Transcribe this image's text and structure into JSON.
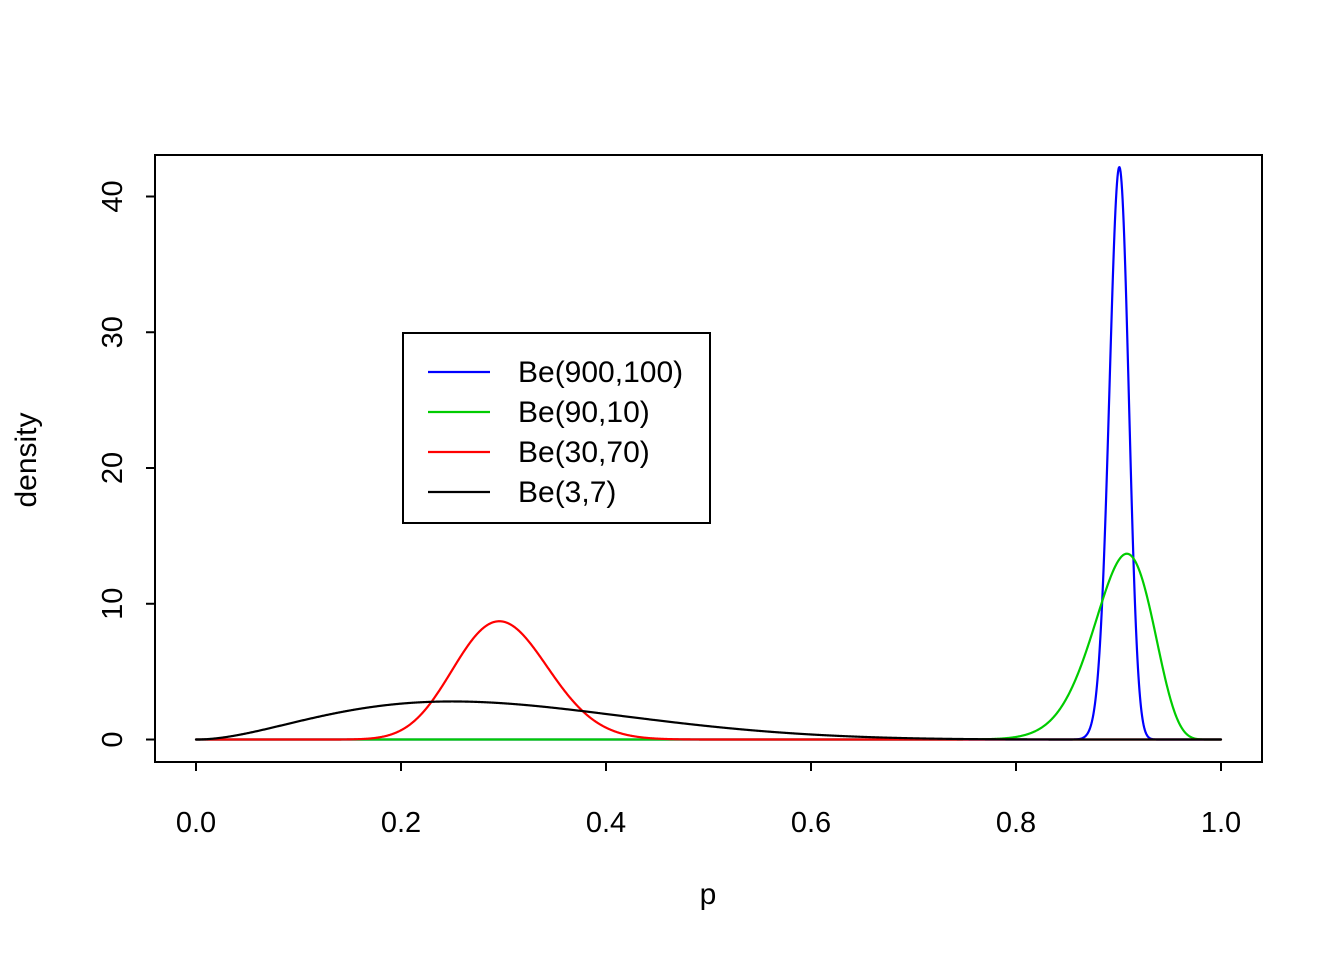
{
  "chart_data": {
    "type": "line",
    "title": "",
    "xlabel": "p",
    "ylabel": "density",
    "xlim": [
      0,
      1
    ],
    "ylim": [
      0,
      41.4
    ],
    "grid": false,
    "legend_position": "upper-center-left",
    "x_ticks": [
      0.0,
      0.2,
      0.4,
      0.6,
      0.8,
      1.0
    ],
    "x_tick_labels": [
      "0.0",
      "0.2",
      "0.4",
      "0.6",
      "0.8",
      "1.0"
    ],
    "y_ticks": [
      0,
      10,
      20,
      30,
      40
    ],
    "y_tick_labels": [
      "0",
      "10",
      "20",
      "30",
      "40"
    ],
    "series": [
      {
        "name": "Be(900,100)",
        "color": "#0000ff",
        "distribution": "beta",
        "alpha": 900,
        "beta": 100,
        "peak_x": 0.901,
        "peak_y": 41.4
      },
      {
        "name": "Be(90,10)",
        "color": "#00cc00",
        "distribution": "beta",
        "alpha": 90,
        "beta": 10,
        "peak_x": 0.908,
        "peak_y": 13.6
      },
      {
        "name": "Be(30,70)",
        "color": "#ff0000",
        "distribution": "beta",
        "alpha": 30,
        "beta": 70,
        "peak_x": 0.296,
        "peak_y": 8.7
      },
      {
        "name": "Be(3,7)",
        "color": "#000000",
        "distribution": "beta",
        "alpha": 3,
        "beta": 7,
        "peak_x": 0.25,
        "peak_y": 2.8
      }
    ]
  }
}
